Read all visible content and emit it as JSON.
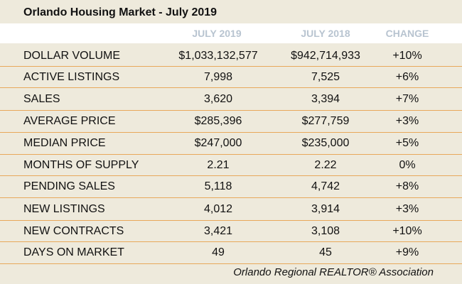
{
  "title": "Orlando Housing Market - July 2019",
  "columns": {
    "current": "JULY 2019",
    "previous": "JULY 2018",
    "change": "CHANGE"
  },
  "rows": [
    {
      "label": "DOLLAR VOLUME",
      "current": "$1,033,132,577",
      "previous": "$942,714,933",
      "change": "+10%"
    },
    {
      "label": "ACTIVE LISTINGS",
      "current": "7,998",
      "previous": "7,525",
      "change": "+6%"
    },
    {
      "label": "SALES",
      "current": "3,620",
      "previous": "3,394",
      "change": "+7%"
    },
    {
      "label": "AVERAGE PRICE",
      "current": "$285,396",
      "previous": "$277,759",
      "change": "+3%"
    },
    {
      "label": "MEDIAN PRICE",
      "current": "$247,000",
      "previous": "$235,000",
      "change": "+5%"
    },
    {
      "label": "MONTHS OF SUPPLY",
      "current": "2.21",
      "previous": "2.22",
      "change": "0%"
    },
    {
      "label": "PENDING SALES",
      "current": "5,118",
      "previous": "4,742",
      "change": "+8%"
    },
    {
      "label": "NEW LISTINGS",
      "current": "4,012",
      "previous": "3,914",
      "change": "+3%"
    },
    {
      "label": "NEW CONTRACTS",
      "current": "3,421",
      "previous": "3,108",
      "change": "+10%"
    },
    {
      "label": "DAYS ON MARKET",
      "current": "49",
      "previous": "45",
      "change": "+9%"
    }
  ],
  "footer": "Orlando Regional REALTOR® Association",
  "colors": {
    "background": "#eeeadc",
    "header_text": "#b8c4d0",
    "divider": "#e8a85a"
  }
}
